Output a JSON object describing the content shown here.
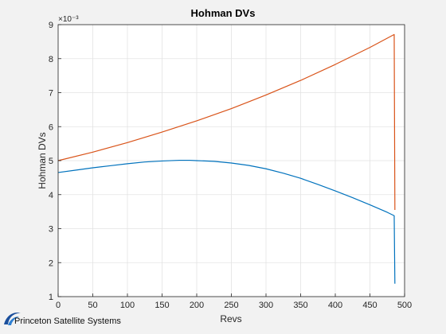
{
  "chart_data": {
    "type": "line",
    "title": "Hohman DVs",
    "xlabel": "Revs",
    "ylabel": "Hohman DVs",
    "y_exponent": "×10⁻³",
    "xlim": [
      0,
      500
    ],
    "ylim": [
      1,
      9
    ],
    "xticks": [
      "0",
      "50",
      "100",
      "150",
      "200",
      "250",
      "300",
      "350",
      "400",
      "450",
      "500"
    ],
    "yticks": [
      "1",
      "2",
      "3",
      "4",
      "5",
      "6",
      "7",
      "8",
      "9"
    ],
    "grid": true,
    "series": [
      {
        "color": "#0072BD",
        "x": [
          0,
          25,
          50,
          75,
          100,
          125,
          150,
          175,
          190,
          200,
          225,
          250,
          275,
          300,
          325,
          350,
          375,
          400,
          425,
          450,
          475,
          485,
          485,
          486
        ],
        "y": [
          4.65,
          4.72,
          4.79,
          4.85,
          4.91,
          4.96,
          4.99,
          5.01,
          5.01,
          5.0,
          4.98,
          4.93,
          4.86,
          4.76,
          4.63,
          4.48,
          4.3,
          4.11,
          3.91,
          3.7,
          3.48,
          3.38,
          3.38,
          1.38
        ]
      },
      {
        "color": "#D95319",
        "x": [
          0,
          50,
          100,
          150,
          200,
          250,
          300,
          350,
          400,
          450,
          485,
          485,
          486
        ],
        "y": [
          5.0,
          5.25,
          5.53,
          5.84,
          6.17,
          6.53,
          6.93,
          7.36,
          7.83,
          8.33,
          8.71,
          8.71,
          3.55
        ]
      }
    ]
  },
  "logo": {
    "text": "Princeton Satellite Systems",
    "icon": "swoosh-logo-icon"
  }
}
